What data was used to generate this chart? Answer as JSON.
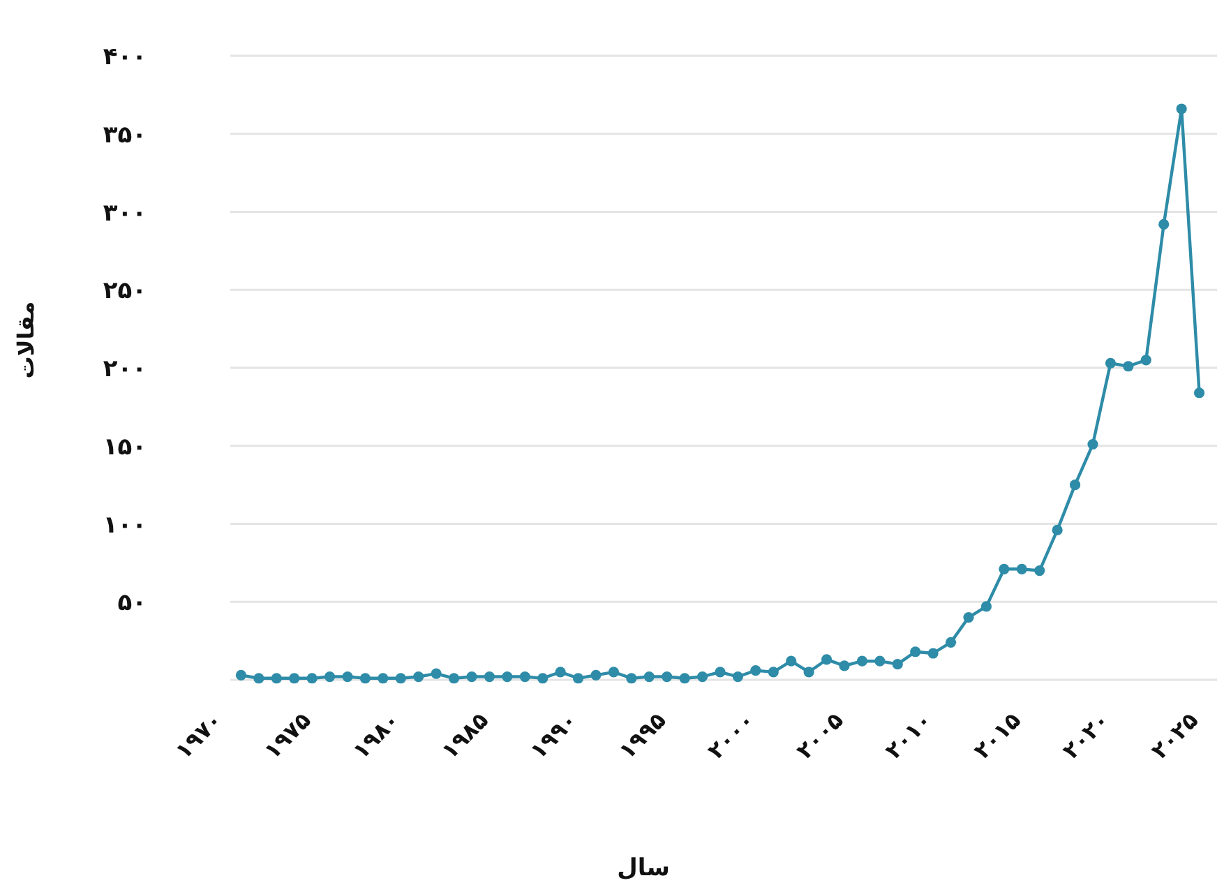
{
  "chart_data": {
    "type": "line",
    "xlabel": "سال",
    "ylabel": "مقالات",
    "x": [
      1971,
      1972,
      1973,
      1974,
      1975,
      1976,
      1977,
      1978,
      1979,
      1980,
      1981,
      1982,
      1983,
      1984,
      1985,
      1986,
      1987,
      1988,
      1989,
      1990,
      1991,
      1992,
      1993,
      1994,
      1995,
      1996,
      1997,
      1998,
      1999,
      2000,
      2001,
      2002,
      2003,
      2004,
      2005,
      2006,
      2007,
      2008,
      2009,
      2010,
      2011,
      2012,
      2013,
      2014,
      2015,
      2016,
      2017,
      2018,
      2019,
      2020,
      2021,
      2022,
      2023,
      2024,
      2025
    ],
    "values": [
      3,
      1,
      1,
      1,
      1,
      2,
      2,
      1,
      1,
      1,
      2,
      4,
      1,
      2,
      2,
      2,
      2,
      1,
      5,
      1,
      3,
      5,
      1,
      2,
      2,
      1,
      2,
      5,
      2,
      6,
      5,
      12,
      5,
      13,
      9,
      12,
      12,
      10,
      18,
      17,
      24,
      40,
      47,
      71,
      71,
      70,
      96,
      125,
      151,
      203,
      201,
      205,
      292,
      366,
      184
    ],
    "color": "#2e8ca8",
    "marker": "circle",
    "line_style": "solid",
    "grid": "y",
    "xlim": [
      1970,
      2026
    ],
    "ylim": [
      0,
      400
    ],
    "xticks": [
      {
        "value": 1970,
        "label": "۱۹۷۰"
      },
      {
        "value": 1975,
        "label": "۱۹۷۵"
      },
      {
        "value": 1980,
        "label": "۱۹۸۰"
      },
      {
        "value": 1985,
        "label": "۱۹۸۵"
      },
      {
        "value": 1990,
        "label": "۱۹۹۰"
      },
      {
        "value": 1995,
        "label": "۱۹۹۵"
      },
      {
        "value": 2000,
        "label": "۲۰۰۰"
      },
      {
        "value": 2005,
        "label": "۲۰۰۵"
      },
      {
        "value": 2010,
        "label": "۲۰۱۰"
      },
      {
        "value": 2015,
        "label": "۲۰۱۵"
      },
      {
        "value": 2020,
        "label": "۲۰۲۰"
      },
      {
        "value": 2025,
        "label": "۲۰۲۵"
      }
    ],
    "yticks": [
      {
        "value": 0,
        "label": null
      },
      {
        "value": 50,
        "label": "۵۰"
      },
      {
        "value": 100,
        "label": "۱۰۰"
      },
      {
        "value": 150,
        "label": "۱۵۰"
      },
      {
        "value": 200,
        "label": "۲۰۰"
      },
      {
        "value": 250,
        "label": "۲۵۰"
      },
      {
        "value": 300,
        "label": "۳۰۰"
      },
      {
        "value": 350,
        "label": "۳۵۰"
      },
      {
        "value": 400,
        "label": "۴۰۰"
      }
    ]
  }
}
